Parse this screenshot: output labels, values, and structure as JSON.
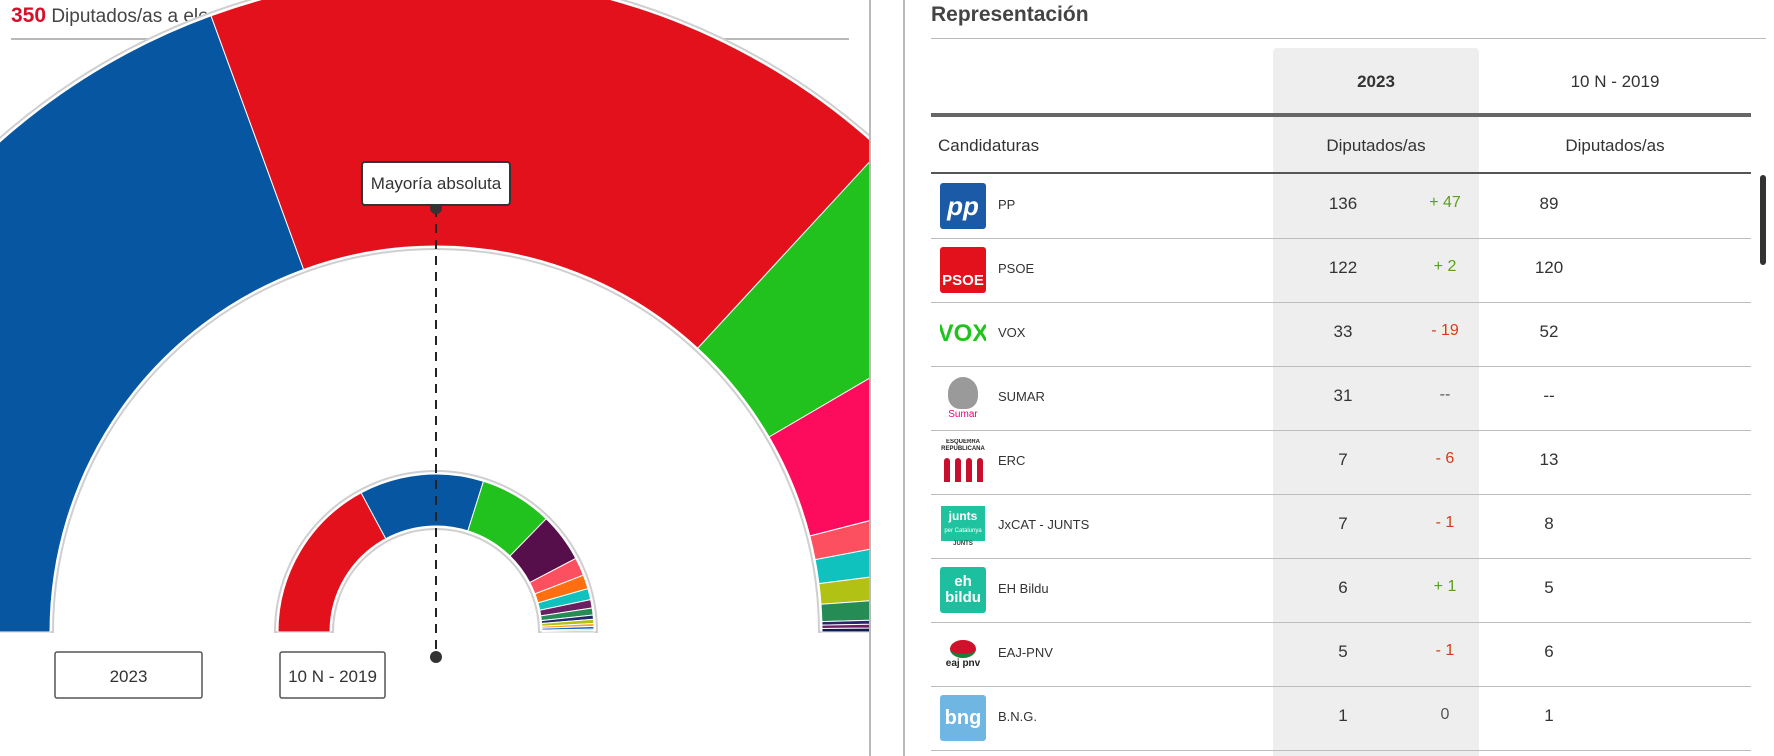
{
  "header": {
    "total_seats": "350",
    "total_label": "Diputados/as a elegir"
  },
  "chart_data": {
    "type": "parliament-semicircle",
    "total": 350,
    "majority_label": "Mayoría absoluta",
    "legend": [
      "2023",
      "10 N - 2019"
    ],
    "series": [
      {
        "name": "2023",
        "values": [
          136,
          122,
          33,
          31,
          7,
          7,
          6,
          5,
          1,
          1,
          1
        ],
        "colors": [
          "#0656a1",
          "#e2111c",
          "#21c21d",
          "#fd0c5d",
          "#fc4f5f",
          "#10c2bd",
          "#b1c214",
          "#268c56",
          "#232a6c",
          "#6b1f63",
          "#0f1d4a"
        ]
      },
      {
        "name": "10 N - 2019",
        "values": [
          120,
          89,
          52,
          35,
          13,
          10,
          8,
          6,
          5,
          3,
          3,
          2,
          2,
          1,
          1
        ],
        "colors": [
          "#e2111c",
          "#0656a1",
          "#21c21d",
          "#570f4b",
          "#fc4f5f",
          "#ff6e0f",
          "#10c2bd",
          "#6b1f63",
          "#268c56",
          "#232a6c",
          "#b1c214",
          "#ff9d1e",
          "#1e64c8",
          "#5da03a",
          "#aa2a2a"
        ]
      }
    ]
  },
  "table": {
    "title": "Representación",
    "col_2023": "2023",
    "col_2019": "10 N - 2019",
    "sub_party": "Candidaturas",
    "sub_seats_2023": "Diputados/as",
    "sub_seats_2019": "Diputados/as",
    "rows": [
      {
        "party": "PP",
        "seats": "136",
        "diff": "+ 47",
        "trend": "up",
        "prev": "89",
        "logo": "pp"
      },
      {
        "party": "PSOE",
        "seats": "122",
        "diff": "+ 2",
        "trend": "up",
        "prev": "120",
        "logo": "psoe"
      },
      {
        "party": "VOX",
        "seats": "33",
        "diff": "- 19",
        "trend": "down",
        "prev": "52",
        "logo": "vox"
      },
      {
        "party": "SUMAR",
        "seats": "31",
        "diff": "--",
        "trend": "none",
        "prev": "--",
        "logo": "sumar"
      },
      {
        "party": "ERC",
        "seats": "7",
        "diff": "- 6",
        "trend": "down",
        "prev": "13",
        "logo": "erc"
      },
      {
        "party": "JxCAT - JUNTS",
        "seats": "7",
        "diff": "- 1",
        "trend": "down",
        "prev": "8",
        "logo": "junts"
      },
      {
        "party": "EH Bildu",
        "seats": "6",
        "diff": "+ 1",
        "trend": "up",
        "prev": "5",
        "logo": "bildu"
      },
      {
        "party": "EAJ-PNV",
        "seats": "5",
        "diff": "- 1",
        "trend": "down",
        "prev": "6",
        "logo": "pnv"
      },
      {
        "party": "B.N.G.",
        "seats": "1",
        "diff": "0",
        "trend": "none",
        "prev": "1",
        "logo": "bng"
      }
    ]
  },
  "logo_text": {
    "pp": "pp",
    "psoe": "PSOE",
    "vox": "VOX",
    "sumar": "Sumar",
    "erc_top": "ESQUERRA REPUBLICANA",
    "junts": "junts",
    "junts_sub": "per Catalunya",
    "junts_foot": "JUNTS",
    "bildu": "eh bildu",
    "pnv": "eaj pnv",
    "bng": "bng"
  },
  "colors": {
    "up": "#5aa01c",
    "down": "#d63b1a",
    "none": "#555555"
  }
}
